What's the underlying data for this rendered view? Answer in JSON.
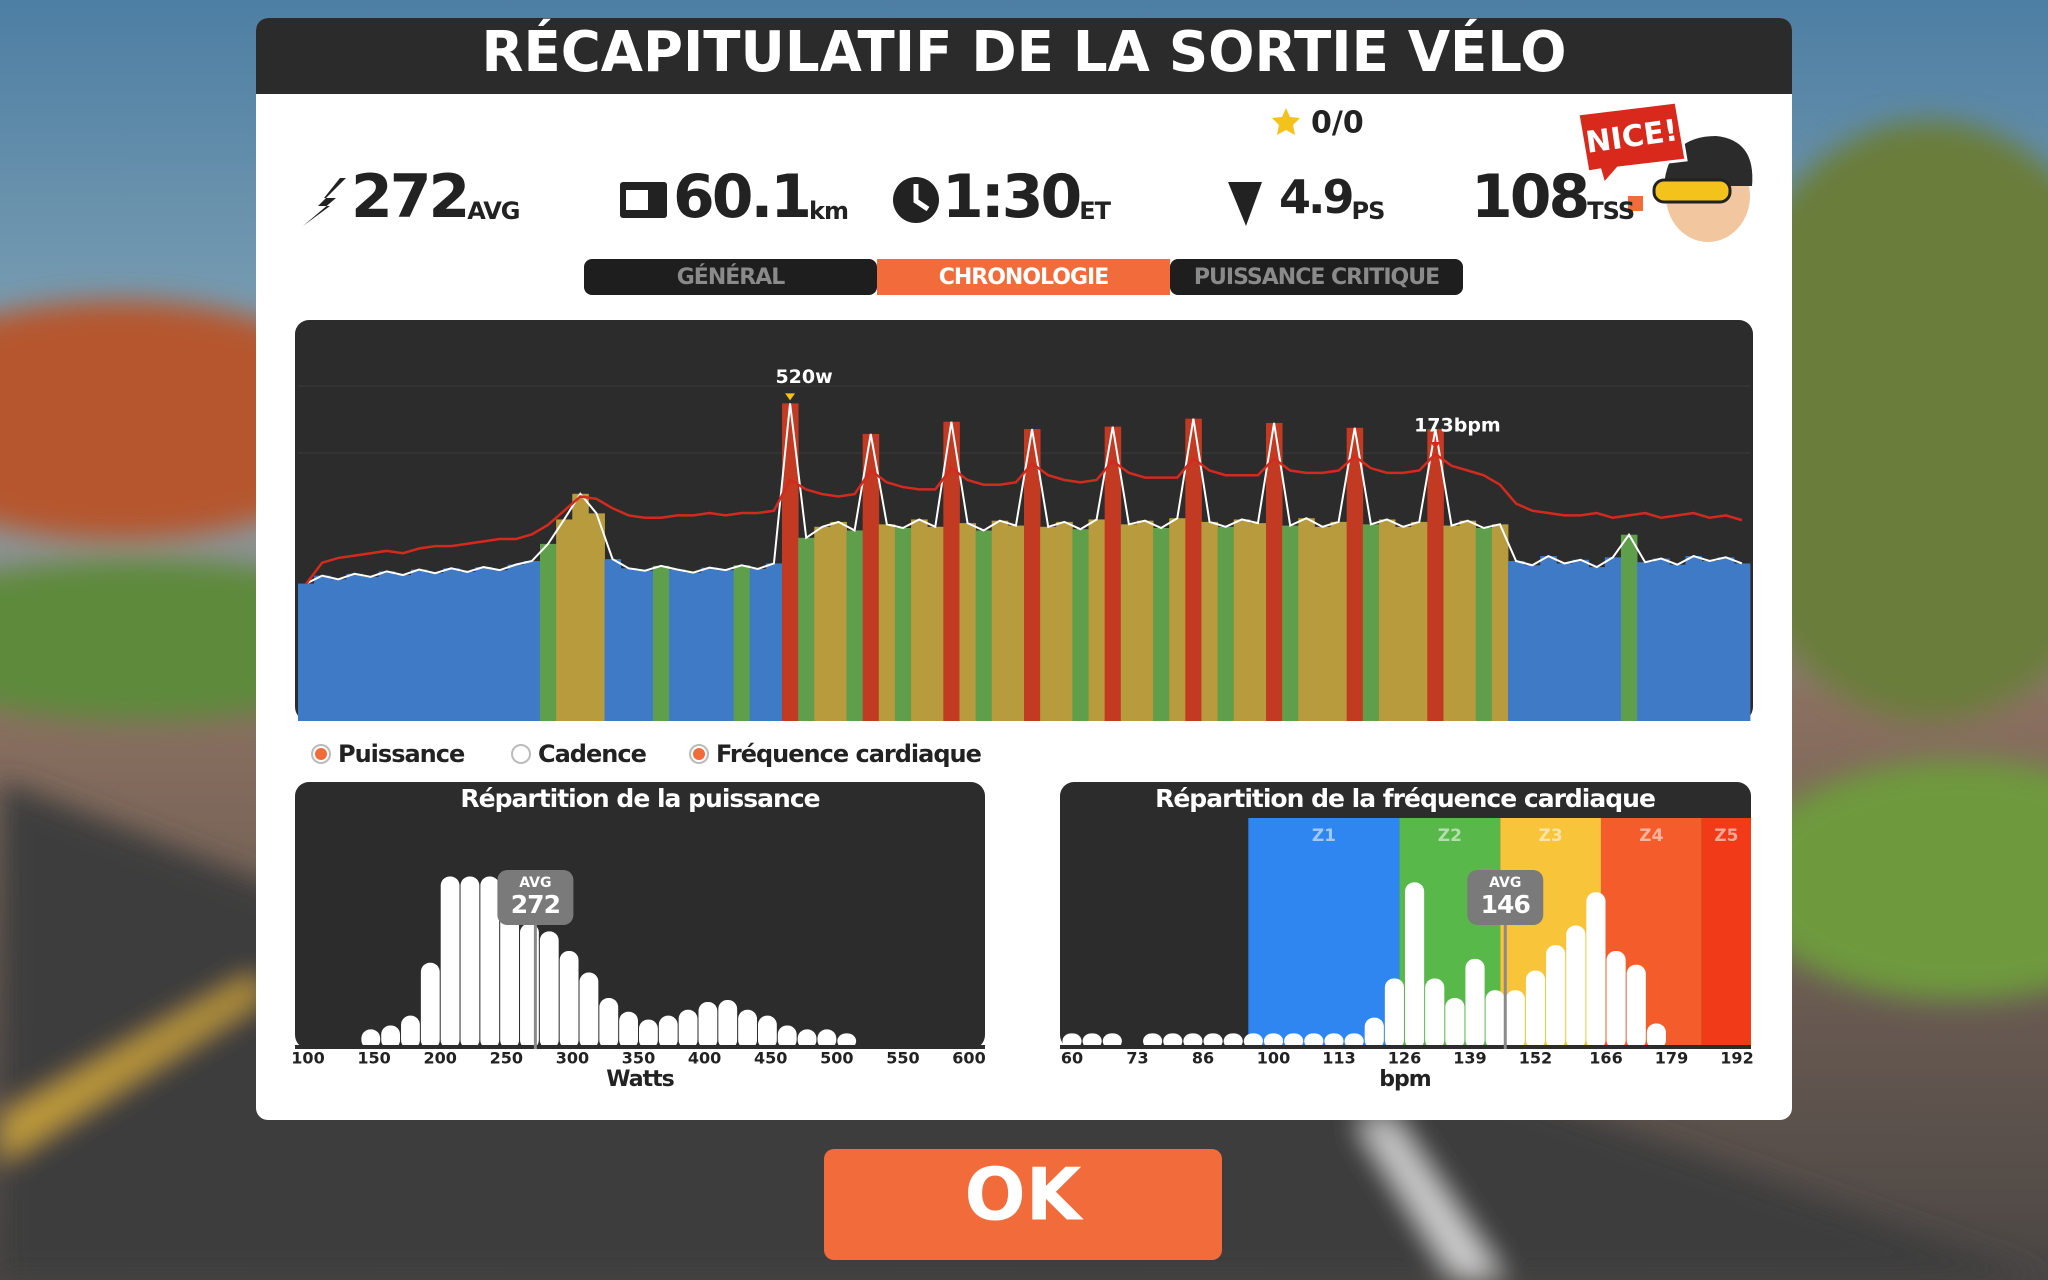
{
  "header": {
    "title": "RÉCAPITULATIF DE LA SORTIE VÉLO"
  },
  "stars": "0/0",
  "badge": "NICE!",
  "stats": [
    {
      "value": "272",
      "unit": "AVG"
    },
    {
      "value": "60.1",
      "unit": "km"
    },
    {
      "value": "1:30",
      "unit": "ET"
    },
    {
      "value": "4.9",
      "unit": "PS"
    },
    {
      "value": "108",
      "unit": "TSS"
    }
  ],
  "tabs": [
    {
      "label": "GÉNÉRAL",
      "active": false
    },
    {
      "label": "CHRONOLOGIE",
      "active": true
    },
    {
      "label": "PUISSANCE CRITIQUE",
      "active": false
    }
  ],
  "timeline": {
    "ylim": [
      0,
      650
    ],
    "y2lim": [
      60,
      228
    ],
    "power": [
      225,
      238,
      232,
      241,
      236,
      245,
      239,
      248,
      242,
      250,
      244,
      252,
      247,
      256,
      262,
      290,
      330,
      372,
      340,
      265,
      250,
      246,
      254,
      248,
      243,
      251,
      247,
      255,
      249,
      258,
      520,
      300,
      318,
      326,
      312,
      470,
      322,
      316,
      330,
      318,
      490,
      324,
      312,
      328,
      320,
      478,
      318,
      326,
      314,
      330,
      482,
      322,
      328,
      316,
      332,
      495,
      326,
      318,
      330,
      324,
      488,
      320,
      332,
      318,
      326,
      480,
      322,
      330,
      318,
      326,
      478,
      320,
      328,
      316,
      322,
      262,
      255,
      270,
      258,
      264,
      252,
      268,
      305,
      260,
      266,
      256,
      270,
      262,
      268,
      258
    ],
    "power_colors": [
      "#3f7ac6",
      "#3f7ac6",
      "#3f7ac6",
      "#3f7ac6",
      "#3f7ac6",
      "#3f7ac6",
      "#3f7ac6",
      "#3f7ac6",
      "#3f7ac6",
      "#3f7ac6",
      "#3f7ac6",
      "#3f7ac6",
      "#3f7ac6",
      "#3f7ac6",
      "#3f7ac6",
      "#5f9e4a",
      "#b79b3c",
      "#b79b3c",
      "#b79b3c",
      "#3f7ac6",
      "#3f7ac6",
      "#3f7ac6",
      "#5f9e4a",
      "#3f7ac6",
      "#3f7ac6",
      "#3f7ac6",
      "#3f7ac6",
      "#5f9e4a",
      "#3f7ac6",
      "#3f7ac6",
      "#c23a22",
      "#5f9e4a",
      "#b79b3c",
      "#b79b3c",
      "#5f9e4a",
      "#c23a22",
      "#b79b3c",
      "#5f9e4a",
      "#b79b3c",
      "#b79b3c",
      "#c23a22",
      "#b79b3c",
      "#5f9e4a",
      "#b79b3c",
      "#b79b3c",
      "#c23a22",
      "#b79b3c",
      "#b79b3c",
      "#5f9e4a",
      "#b79b3c",
      "#c23a22",
      "#b79b3c",
      "#b79b3c",
      "#5f9e4a",
      "#b79b3c",
      "#c23a22",
      "#b79b3c",
      "#5f9e4a",
      "#b79b3c",
      "#b79b3c",
      "#c23a22",
      "#5f9e4a",
      "#b79b3c",
      "#b79b3c",
      "#b79b3c",
      "#c23a22",
      "#5f9e4a",
      "#b79b3c",
      "#b79b3c",
      "#b79b3c",
      "#c23a22",
      "#b79b3c",
      "#b79b3c",
      "#5f9e4a",
      "#b79b3c",
      "#3f7ac6",
      "#3f7ac6",
      "#3f7ac6",
      "#3f7ac6",
      "#3f7ac6",
      "#3f7ac6",
      "#3f7ac6",
      "#5f9e4a",
      "#3f7ac6",
      "#3f7ac6",
      "#3f7ac6",
      "#3f7ac6",
      "#3f7ac6",
      "#3f7ac6",
      "#3f7ac6"
    ],
    "heart_rate": [
      118,
      127,
      129,
      130,
      131,
      132,
      131,
      133,
      134,
      134,
      135,
      136,
      137,
      137,
      139,
      143,
      149,
      155,
      154,
      150,
      147,
      146,
      146,
      147,
      147,
      148,
      147,
      148,
      148,
      149,
      162,
      158,
      156,
      155,
      156,
      166,
      161,
      159,
      158,
      158,
      167,
      162,
      160,
      160,
      161,
      169,
      164,
      162,
      161,
      162,
      170,
      165,
      163,
      163,
      163,
      171,
      166,
      164,
      164,
      164,
      171,
      166,
      165,
      165,
      166,
      172,
      167,
      165,
      165,
      166,
      173,
      168,
      166,
      164,
      160,
      152,
      149,
      148,
      147,
      147,
      148,
      146,
      147,
      148,
      146,
      147,
      148,
      146,
      147,
      145
    ],
    "heart_rate_color": "#d42a1e",
    "power_peak_label": "520w",
    "hr_peak_label": "173bpm"
  },
  "legend": [
    {
      "label": "Puissance",
      "checked": true
    },
    {
      "label": "Cadence",
      "checked": false
    },
    {
      "label": "Fréquence cardiaque",
      "checked": true
    }
  ],
  "power_histogram": {
    "title": "Répartition de la puissance",
    "xlabel": "Watts",
    "xlim": [
      100,
      600
    ],
    "xticks": [
      100,
      150,
      200,
      250,
      300,
      350,
      400,
      450,
      500,
      550,
      600
    ],
    "bins": [
      140,
      155,
      170,
      185,
      200,
      215,
      230,
      245,
      260,
      275,
      290,
      305,
      320,
      335,
      350,
      365,
      380,
      395,
      410,
      425,
      440,
      455,
      470,
      485,
      500,
      515
    ],
    "counts": [
      10,
      12,
      17,
      44,
      88,
      88,
      88,
      78,
      64,
      60,
      50,
      39,
      26,
      19,
      15,
      17,
      20,
      24,
      25,
      20,
      17,
      12,
      10,
      10,
      8
    ],
    "ylim": [
      0,
      100
    ],
    "color": "#ffffff",
    "avg_label": "AVG",
    "avg": 272
  },
  "hr_histogram": {
    "title": "Répartition de la fréquence cardiaque",
    "xlabel": "bpm",
    "xlim": [
      60,
      192
    ],
    "xticks": [
      60,
      73,
      86,
      100,
      113,
      126,
      139,
      152,
      166,
      179,
      192
    ],
    "bins": [
      58,
      62,
      66,
      70,
      74,
      78,
      82,
      86,
      90,
      94,
      98,
      102,
      106,
      110,
      114,
      118,
      122,
      126,
      130,
      134,
      138,
      142,
      146,
      150,
      154,
      158,
      162,
      166,
      170,
      174,
      178
    ],
    "counts": [
      8,
      8,
      8,
      0,
      8,
      8,
      8,
      8,
      8,
      8,
      8,
      8,
      8,
      8,
      8,
      16,
      36,
      85,
      36,
      26,
      46,
      30,
      30,
      40,
      53,
      63,
      80,
      50,
      43,
      13
    ],
    "ylim": [
      0,
      100
    ],
    "color": "#ffffff",
    "avg_label": "AVG",
    "avg": 146,
    "zones": [
      {
        "name": "Z1",
        "from": 95,
        "color": "#2f86f0"
      },
      {
        "name": "Z2",
        "from": 125,
        "color": "#58b84a"
      },
      {
        "name": "Z3",
        "from": 145,
        "color": "#f7c43a"
      },
      {
        "name": "Z4",
        "from": 165,
        "color": "#f55c2c"
      },
      {
        "name": "Z5",
        "from": 185,
        "color": "#f03a18"
      }
    ]
  },
  "button": "OK"
}
